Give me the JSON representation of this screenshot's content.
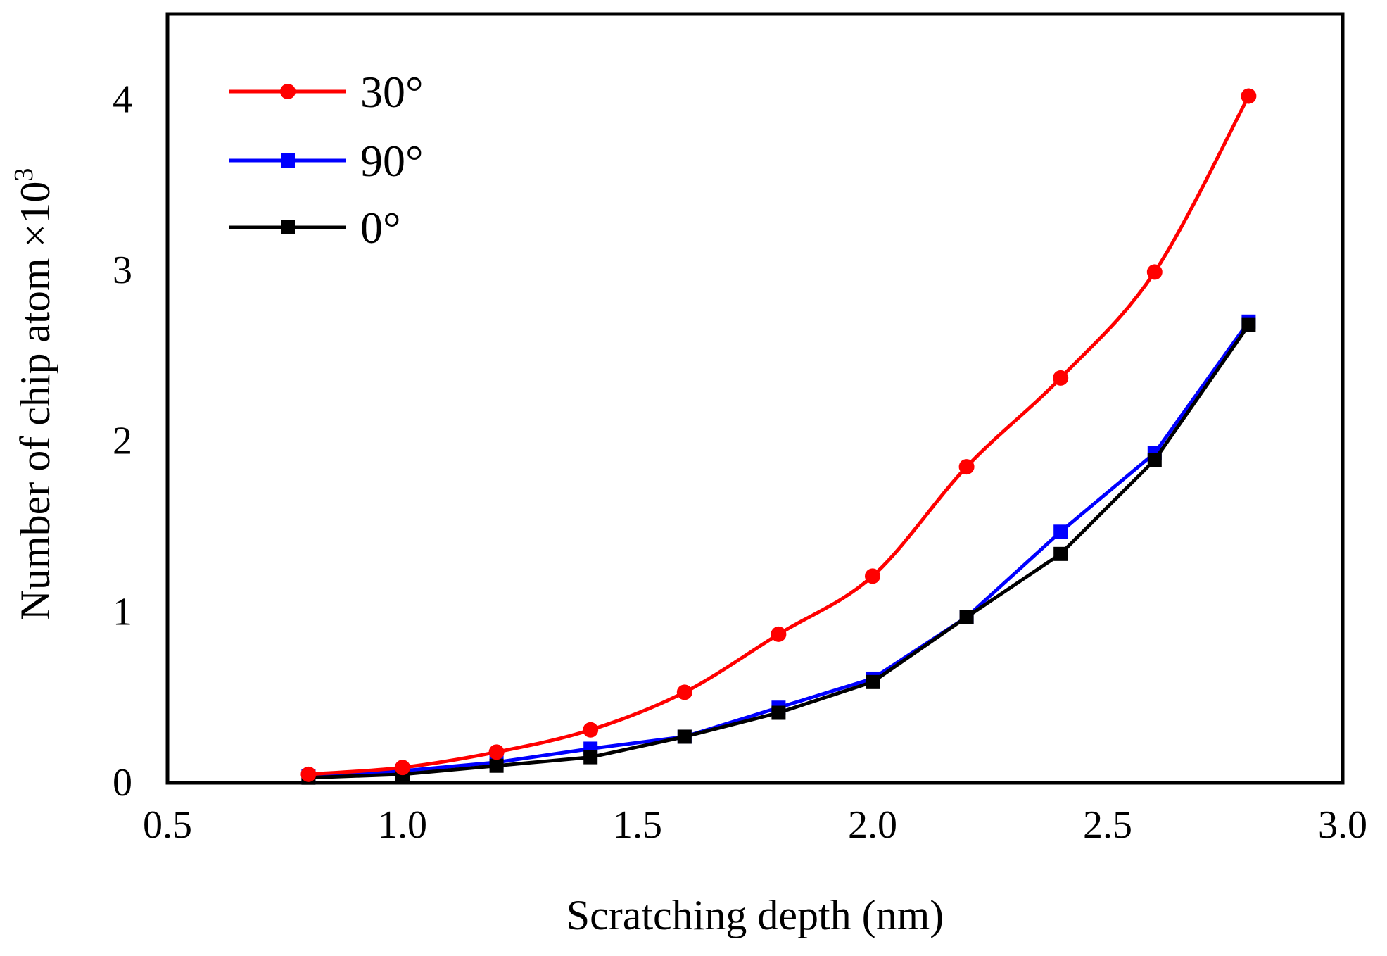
{
  "chart_data": {
    "type": "line",
    "title": "",
    "xlabel": "Scratching depth (nm)",
    "ylabel_main": "Number of chip atom ×10",
    "ylabel_superscript": "3",
    "xlim": [
      0.5,
      3.0
    ],
    "ylim": [
      0,
      4.5
    ],
    "xticks": [
      0.5,
      1.0,
      1.5,
      2.0,
      2.5,
      3.0
    ],
    "xtick_labels": [
      "0.5",
      "1.0",
      "1.5",
      "2.0",
      "2.5",
      "3.0"
    ],
    "yticks": [
      0,
      1,
      2,
      3,
      4
    ],
    "ytick_labels": [
      "0",
      "1",
      "2",
      "3",
      "4"
    ],
    "grid": false,
    "legend_position": "top-left",
    "x": [
      0.8,
      1.0,
      1.2,
      1.4,
      1.6,
      1.8,
      2.0,
      2.2,
      2.4,
      2.6,
      2.8
    ],
    "series": [
      {
        "name": "30°",
        "color": "#ff0000",
        "marker": "circle",
        "values": [
          0.05,
          0.09,
          0.18,
          0.31,
          0.53,
          0.87,
          1.21,
          1.85,
          2.37,
          2.99,
          4.02
        ]
      },
      {
        "name": "90°",
        "color": "#0000ff",
        "marker": "square",
        "values": [
          0.04,
          0.07,
          0.12,
          0.2,
          0.27,
          0.44,
          0.61,
          0.97,
          1.47,
          1.93,
          2.7
        ]
      },
      {
        "name": "0°",
        "color": "#000000",
        "marker": "square",
        "values": [
          0.03,
          0.05,
          0.1,
          0.15,
          0.27,
          0.41,
          0.59,
          0.97,
          1.34,
          1.89,
          2.68
        ]
      }
    ]
  }
}
